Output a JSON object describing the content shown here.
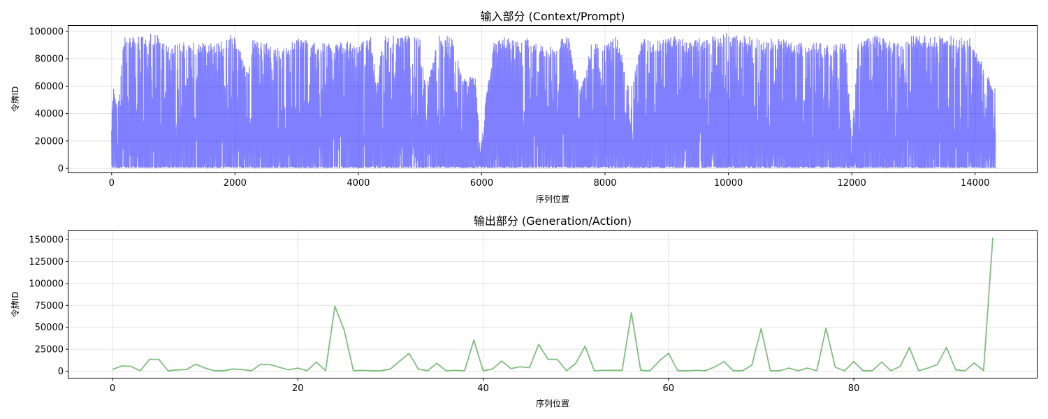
{
  "chart_data": [
    {
      "type": "line",
      "title": "输入部分 (Context/Prompt)",
      "xlabel": "序列位置",
      "ylabel": "令牌ID",
      "xlim": [
        -700,
        15000
      ],
      "ylim": [
        -3000,
        104000
      ],
      "xticks": [
        0,
        2000,
        4000,
        6000,
        8000,
        10000,
        12000,
        14000
      ],
      "yticks": [
        0,
        20000,
        40000,
        60000,
        80000,
        100000
      ],
      "grid": true,
      "color": "#0000ff",
      "opacity": 0.5,
      "n_points": 14330,
      "envelope": {
        "x": [
          0,
          100,
          200,
          300,
          500,
          700,
          1000,
          1300,
          1600,
          1800,
          1950,
          2050,
          2200,
          2300,
          2500,
          2800,
          3000,
          3300,
          3500,
          3700,
          4000,
          4200,
          4300,
          4400,
          4600,
          4800,
          5000,
          5100,
          5300,
          5500,
          5700,
          5900,
          5980,
          6050,
          6200,
          6400,
          6600,
          6800,
          7000,
          7200,
          7400,
          7600,
          7800,
          8000,
          8200,
          8400,
          8600,
          8800,
          9000,
          9200,
          9400,
          9600,
          9800,
          10000,
          10200,
          10400,
          10600,
          10800,
          11000,
          11300,
          11600,
          11900,
          12000,
          12100,
          12400,
          12700,
          13000,
          13300,
          13600,
          13900,
          14100,
          14300
        ],
        "max": [
          67000,
          43000,
          97000,
          97000,
          97000,
          99000,
          92000,
          92000,
          92000,
          94000,
          99000,
          92000,
          70000,
          97000,
          92000,
          88000,
          96000,
          92000,
          92000,
          93000,
          92000,
          97000,
          60000,
          97000,
          97000,
          97000,
          97000,
          59000,
          97000,
          97000,
          67000,
          67000,
          11000,
          45000,
          92000,
          97000,
          92000,
          97000,
          88000,
          92000,
          97000,
          57000,
          97000,
          92000,
          97000,
          57000,
          97000,
          92000,
          97000,
          97000,
          92000,
          97000,
          97000,
          99000,
          97000,
          97000,
          92000,
          97000,
          92000,
          92000,
          92000,
          92000,
          20000,
          92000,
          97000,
          92000,
          97000,
          97000,
          97000,
          97000,
          79000,
          60000
        ]
      }
    },
    {
      "type": "line",
      "title": "输出部分 (Generation/Action)",
      "xlabel": "序列位置",
      "ylabel": "令牌ID",
      "xlim": [
        -4.75,
        99.75
      ],
      "ylim": [
        -7500,
        159500
      ],
      "xticks": [
        0,
        20,
        40,
        60,
        80
      ],
      "yticks": [
        0,
        25000,
        50000,
        75000,
        100000,
        125000,
        150000
      ],
      "grid": true,
      "color": "#008000",
      "opacity": 0.5,
      "x": [
        0,
        1,
        2,
        3,
        4,
        5,
        6,
        7,
        8,
        9,
        10,
        11,
        12,
        13,
        14,
        15,
        16,
        17,
        18,
        19,
        20,
        21,
        22,
        23,
        24,
        25,
        26,
        27,
        28,
        29,
        30,
        31,
        32,
        33,
        34,
        35,
        36,
        37,
        38,
        39,
        40,
        41,
        42,
        43,
        44,
        45,
        46,
        47,
        48,
        49,
        50,
        51,
        52,
        53,
        54,
        55,
        56,
        57,
        58,
        59,
        60,
        61,
        62,
        63,
        64,
        65,
        66,
        67,
        68,
        69,
        70,
        71,
        72,
        73,
        74,
        75,
        76,
        77,
        78,
        79,
        80,
        81,
        82,
        83,
        84,
        85,
        86,
        87,
        88,
        89,
        90,
        91,
        92,
        93,
        94,
        95
      ],
      "y": [
        2000,
        6000,
        5500,
        500,
        13500,
        13500,
        500,
        1500,
        2000,
        8000,
        3500,
        500,
        500,
        2500,
        2000,
        500,
        8000,
        7500,
        4500,
        1500,
        3500,
        500,
        10500,
        500,
        74000,
        47000,
        500,
        1000,
        500,
        500,
        2500,
        11500,
        20500,
        2500,
        500,
        9000,
        500,
        1000,
        500,
        35500,
        500,
        2500,
        11500,
        3000,
        5000,
        4000,
        30500,
        13500,
        13500,
        500,
        9000,
        28500,
        500,
        1000,
        1000,
        1000,
        66500,
        1000,
        500,
        11500,
        20500,
        500,
        500,
        1000,
        500,
        5000,
        11000,
        500,
        500,
        7000,
        48500,
        500,
        500,
        3500,
        500,
        3500,
        500,
        49000,
        4500,
        500,
        11000,
        500,
        500,
        10500,
        500,
        5500,
        27000,
        500,
        3500,
        7500,
        27000,
        1500,
        500,
        9500,
        500,
        152000
      ]
    }
  ]
}
